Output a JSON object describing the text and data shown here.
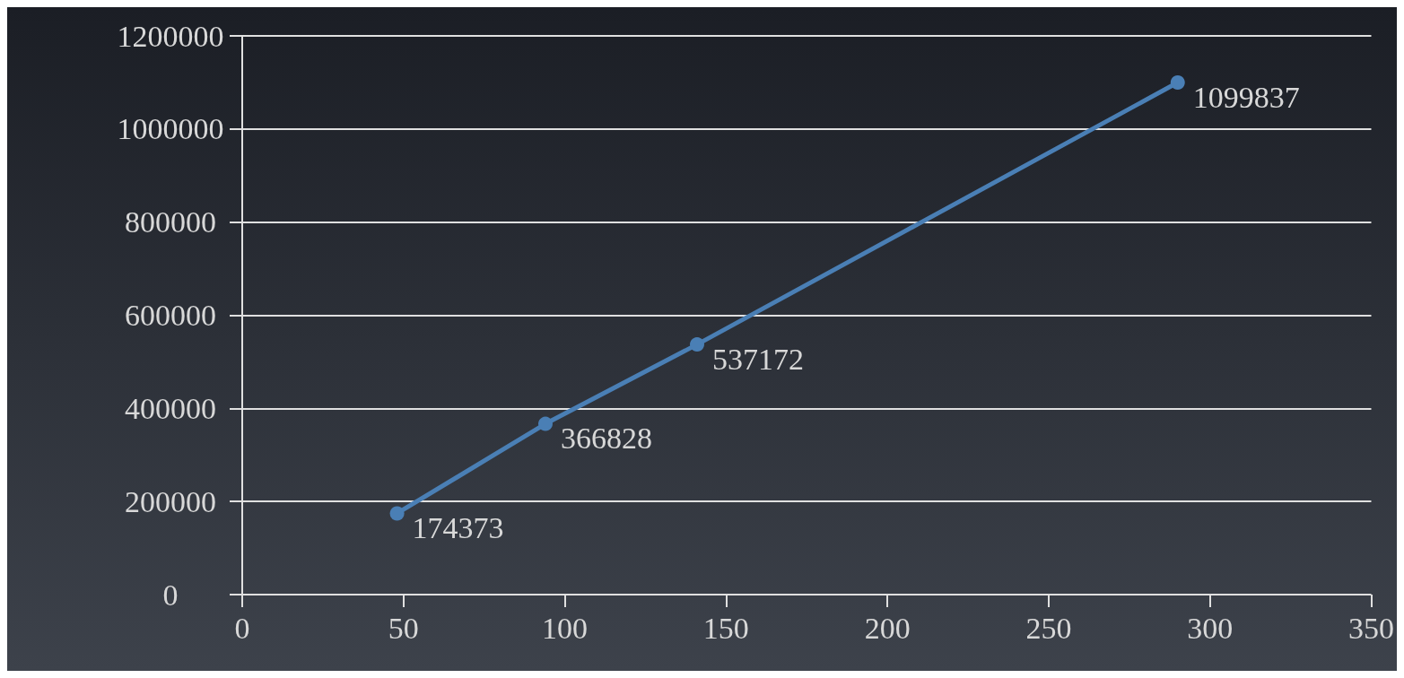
{
  "chart_data": {
    "type": "line",
    "x": [
      48,
      94,
      141,
      290
    ],
    "series": [
      {
        "color": "#4a7fb5",
        "values": [
          174373,
          366828,
          537172,
          1099837
        ]
      }
    ],
    "xlim": [
      0,
      350
    ],
    "xticks": [
      0,
      50,
      100,
      150,
      200,
      250,
      300,
      350
    ],
    "ylim": [
      0,
      1200000
    ],
    "yticks": [
      0,
      200000,
      400000,
      600000,
      800000,
      1000000,
      1200000
    ],
    "grid": "y",
    "marker": "circle",
    "line_style": "solid",
    "data_labels": true
  }
}
